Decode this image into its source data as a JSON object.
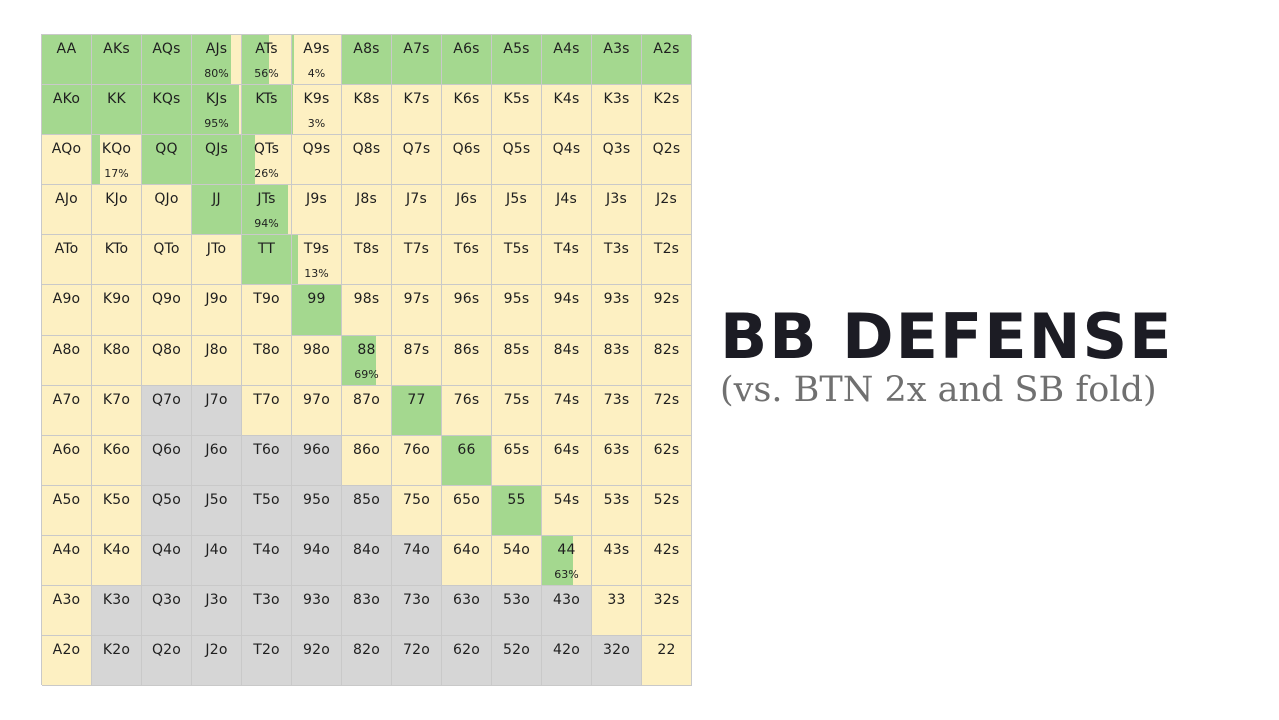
{
  "title": "BB DEFENSE",
  "subtitle": "(vs. BTN 2x and SB fold)",
  "colors": {
    "call": "#a4d88f",
    "raise": "#fdf0c2",
    "fold": "#d6d6d6"
  },
  "grid": {
    "rows": [
      [
        {
          "hand": "AA",
          "fill": "call",
          "freq": 1
        },
        {
          "hand": "AKs",
          "fill": "call",
          "freq": 1
        },
        {
          "hand": "AQs",
          "fill": "call",
          "freq": 1
        },
        {
          "hand": "AJs",
          "fill": "call",
          "freq": 0.8,
          "pct": "80%"
        },
        {
          "hand": "ATs",
          "fill": "call",
          "freq": 0.56,
          "pct": "56%"
        },
        {
          "hand": "A9s",
          "fill": "call",
          "freq": 0.04,
          "pct": "4%"
        },
        {
          "hand": "A8s",
          "fill": "call",
          "freq": 1
        },
        {
          "hand": "A7s",
          "fill": "call",
          "freq": 1
        },
        {
          "hand": "A6s",
          "fill": "call",
          "freq": 1
        },
        {
          "hand": "A5s",
          "fill": "call",
          "freq": 1
        },
        {
          "hand": "A4s",
          "fill": "call",
          "freq": 1
        },
        {
          "hand": "A3s",
          "fill": "call",
          "freq": 1
        },
        {
          "hand": "A2s",
          "fill": "call",
          "freq": 1
        }
      ],
      [
        {
          "hand": "AKo",
          "fill": "call",
          "freq": 1
        },
        {
          "hand": "KK",
          "fill": "call",
          "freq": 1
        },
        {
          "hand": "KQs",
          "fill": "call",
          "freq": 1
        },
        {
          "hand": "KJs",
          "fill": "call",
          "freq": 0.95,
          "pct": "95%"
        },
        {
          "hand": "KTs",
          "fill": "call",
          "freq": 1
        },
        {
          "hand": "K9s",
          "fill": "call",
          "freq": 0.03,
          "pct": "3%"
        },
        {
          "hand": "K8s",
          "fill": "raise",
          "freq": 0
        },
        {
          "hand": "K7s",
          "fill": "raise",
          "freq": 0
        },
        {
          "hand": "K6s",
          "fill": "raise",
          "freq": 0
        },
        {
          "hand": "K5s",
          "fill": "raise",
          "freq": 0
        },
        {
          "hand": "K4s",
          "fill": "raise",
          "freq": 0
        },
        {
          "hand": "K3s",
          "fill": "raise",
          "freq": 0
        },
        {
          "hand": "K2s",
          "fill": "raise",
          "freq": 0
        }
      ],
      [
        {
          "hand": "AQo",
          "fill": "raise",
          "freq": 0
        },
        {
          "hand": "KQo",
          "fill": "call",
          "freq": 0.17,
          "pct": "17%"
        },
        {
          "hand": "QQ",
          "fill": "call",
          "freq": 1
        },
        {
          "hand": "QJs",
          "fill": "call",
          "freq": 1
        },
        {
          "hand": "QTs",
          "fill": "call",
          "freq": 0.26,
          "pct": "26%"
        },
        {
          "hand": "Q9s",
          "fill": "raise",
          "freq": 0
        },
        {
          "hand": "Q8s",
          "fill": "raise",
          "freq": 0
        },
        {
          "hand": "Q7s",
          "fill": "raise",
          "freq": 0
        },
        {
          "hand": "Q6s",
          "fill": "raise",
          "freq": 0
        },
        {
          "hand": "Q5s",
          "fill": "raise",
          "freq": 0
        },
        {
          "hand": "Q4s",
          "fill": "raise",
          "freq": 0
        },
        {
          "hand": "Q3s",
          "fill": "raise",
          "freq": 0
        },
        {
          "hand": "Q2s",
          "fill": "raise",
          "freq": 0
        }
      ],
      [
        {
          "hand": "AJo",
          "fill": "raise",
          "freq": 0
        },
        {
          "hand": "KJo",
          "fill": "raise",
          "freq": 0
        },
        {
          "hand": "QJo",
          "fill": "raise",
          "freq": 0
        },
        {
          "hand": "JJ",
          "fill": "call",
          "freq": 1
        },
        {
          "hand": "JTs",
          "fill": "call",
          "freq": 0.94,
          "pct": "94%"
        },
        {
          "hand": "J9s",
          "fill": "raise",
          "freq": 0
        },
        {
          "hand": "J8s",
          "fill": "raise",
          "freq": 0
        },
        {
          "hand": "J7s",
          "fill": "raise",
          "freq": 0
        },
        {
          "hand": "J6s",
          "fill": "raise",
          "freq": 0
        },
        {
          "hand": "J5s",
          "fill": "raise",
          "freq": 0
        },
        {
          "hand": "J4s",
          "fill": "raise",
          "freq": 0
        },
        {
          "hand": "J3s",
          "fill": "raise",
          "freq": 0
        },
        {
          "hand": "J2s",
          "fill": "raise",
          "freq": 0
        }
      ],
      [
        {
          "hand": "ATo",
          "fill": "raise",
          "freq": 0
        },
        {
          "hand": "KTo",
          "fill": "raise",
          "freq": 0
        },
        {
          "hand": "QTo",
          "fill": "raise",
          "freq": 0
        },
        {
          "hand": "JTo",
          "fill": "raise",
          "freq": 0
        },
        {
          "hand": "TT",
          "fill": "call",
          "freq": 1
        },
        {
          "hand": "T9s",
          "fill": "call",
          "freq": 0.13,
          "pct": "13%"
        },
        {
          "hand": "T8s",
          "fill": "raise",
          "freq": 0
        },
        {
          "hand": "T7s",
          "fill": "raise",
          "freq": 0
        },
        {
          "hand": "T6s",
          "fill": "raise",
          "freq": 0
        },
        {
          "hand": "T5s",
          "fill": "raise",
          "freq": 0
        },
        {
          "hand": "T4s",
          "fill": "raise",
          "freq": 0
        },
        {
          "hand": "T3s",
          "fill": "raise",
          "freq": 0
        },
        {
          "hand": "T2s",
          "fill": "raise",
          "freq": 0
        }
      ],
      [
        {
          "hand": "A9o",
          "fill": "raise",
          "freq": 0
        },
        {
          "hand": "K9o",
          "fill": "raise",
          "freq": 0
        },
        {
          "hand": "Q9o",
          "fill": "raise",
          "freq": 0
        },
        {
          "hand": "J9o",
          "fill": "raise",
          "freq": 0
        },
        {
          "hand": "T9o",
          "fill": "raise",
          "freq": 0
        },
        {
          "hand": "99",
          "fill": "call",
          "freq": 1
        },
        {
          "hand": "98s",
          "fill": "raise",
          "freq": 0
        },
        {
          "hand": "97s",
          "fill": "raise",
          "freq": 0
        },
        {
          "hand": "96s",
          "fill": "raise",
          "freq": 0
        },
        {
          "hand": "95s",
          "fill": "raise",
          "freq": 0
        },
        {
          "hand": "94s",
          "fill": "raise",
          "freq": 0
        },
        {
          "hand": "93s",
          "fill": "raise",
          "freq": 0
        },
        {
          "hand": "92s",
          "fill": "raise",
          "freq": 0
        }
      ],
      [
        {
          "hand": "A8o",
          "fill": "raise",
          "freq": 0
        },
        {
          "hand": "K8o",
          "fill": "raise",
          "freq": 0
        },
        {
          "hand": "Q8o",
          "fill": "raise",
          "freq": 0
        },
        {
          "hand": "J8o",
          "fill": "raise",
          "freq": 0
        },
        {
          "hand": "T8o",
          "fill": "raise",
          "freq": 0
        },
        {
          "hand": "98o",
          "fill": "raise",
          "freq": 0
        },
        {
          "hand": "88",
          "fill": "call",
          "freq": 0.69,
          "pct": "69%"
        },
        {
          "hand": "87s",
          "fill": "raise",
          "freq": 0
        },
        {
          "hand": "86s",
          "fill": "raise",
          "freq": 0
        },
        {
          "hand": "85s",
          "fill": "raise",
          "freq": 0
        },
        {
          "hand": "84s",
          "fill": "raise",
          "freq": 0
        },
        {
          "hand": "83s",
          "fill": "raise",
          "freq": 0
        },
        {
          "hand": "82s",
          "fill": "raise",
          "freq": 0
        }
      ],
      [
        {
          "hand": "A7o",
          "fill": "raise",
          "freq": 0
        },
        {
          "hand": "K7o",
          "fill": "raise",
          "freq": 0
        },
        {
          "hand": "Q7o",
          "fill": "fold",
          "freq": 0
        },
        {
          "hand": "J7o",
          "fill": "fold",
          "freq": 0
        },
        {
          "hand": "T7o",
          "fill": "raise",
          "freq": 0
        },
        {
          "hand": "97o",
          "fill": "raise",
          "freq": 0
        },
        {
          "hand": "87o",
          "fill": "raise",
          "freq": 0
        },
        {
          "hand": "77",
          "fill": "call",
          "freq": 1
        },
        {
          "hand": "76s",
          "fill": "raise",
          "freq": 0
        },
        {
          "hand": "75s",
          "fill": "raise",
          "freq": 0
        },
        {
          "hand": "74s",
          "fill": "raise",
          "freq": 0
        },
        {
          "hand": "73s",
          "fill": "raise",
          "freq": 0
        },
        {
          "hand": "72s",
          "fill": "raise",
          "freq": 0
        }
      ],
      [
        {
          "hand": "A6o",
          "fill": "raise",
          "freq": 0
        },
        {
          "hand": "K6o",
          "fill": "raise",
          "freq": 0
        },
        {
          "hand": "Q6o",
          "fill": "fold",
          "freq": 0
        },
        {
          "hand": "J6o",
          "fill": "fold",
          "freq": 0
        },
        {
          "hand": "T6o",
          "fill": "fold",
          "freq": 0
        },
        {
          "hand": "96o",
          "fill": "fold",
          "freq": 0
        },
        {
          "hand": "86o",
          "fill": "raise",
          "freq": 0
        },
        {
          "hand": "76o",
          "fill": "raise",
          "freq": 0
        },
        {
          "hand": "66",
          "fill": "call",
          "freq": 1
        },
        {
          "hand": "65s",
          "fill": "raise",
          "freq": 0
        },
        {
          "hand": "64s",
          "fill": "raise",
          "freq": 0
        },
        {
          "hand": "63s",
          "fill": "raise",
          "freq": 0
        },
        {
          "hand": "62s",
          "fill": "raise",
          "freq": 0
        }
      ],
      [
        {
          "hand": "A5o",
          "fill": "raise",
          "freq": 0
        },
        {
          "hand": "K5o",
          "fill": "raise",
          "freq": 0
        },
        {
          "hand": "Q5o",
          "fill": "fold",
          "freq": 0
        },
        {
          "hand": "J5o",
          "fill": "fold",
          "freq": 0
        },
        {
          "hand": "T5o",
          "fill": "fold",
          "freq": 0
        },
        {
          "hand": "95o",
          "fill": "fold",
          "freq": 0
        },
        {
          "hand": "85o",
          "fill": "fold",
          "freq": 0
        },
        {
          "hand": "75o",
          "fill": "raise",
          "freq": 0
        },
        {
          "hand": "65o",
          "fill": "raise",
          "freq": 0
        },
        {
          "hand": "55",
          "fill": "call",
          "freq": 1
        },
        {
          "hand": "54s",
          "fill": "raise",
          "freq": 0
        },
        {
          "hand": "53s",
          "fill": "raise",
          "freq": 0
        },
        {
          "hand": "52s",
          "fill": "raise",
          "freq": 0
        }
      ],
      [
        {
          "hand": "A4o",
          "fill": "raise",
          "freq": 0
        },
        {
          "hand": "K4o",
          "fill": "raise",
          "freq": 0
        },
        {
          "hand": "Q4o",
          "fill": "fold",
          "freq": 0
        },
        {
          "hand": "J4o",
          "fill": "fold",
          "freq": 0
        },
        {
          "hand": "T4o",
          "fill": "fold",
          "freq": 0
        },
        {
          "hand": "94o",
          "fill": "fold",
          "freq": 0
        },
        {
          "hand": "84o",
          "fill": "fold",
          "freq": 0
        },
        {
          "hand": "74o",
          "fill": "fold",
          "freq": 0
        },
        {
          "hand": "64o",
          "fill": "raise",
          "freq": 0
        },
        {
          "hand": "54o",
          "fill": "raise",
          "freq": 0
        },
        {
          "hand": "44",
          "fill": "call",
          "freq": 0.63,
          "pct": "63%"
        },
        {
          "hand": "43s",
          "fill": "raise",
          "freq": 0
        },
        {
          "hand": "42s",
          "fill": "raise",
          "freq": 0
        }
      ],
      [
        {
          "hand": "A3o",
          "fill": "raise",
          "freq": 0
        },
        {
          "hand": "K3o",
          "fill": "fold",
          "freq": 0
        },
        {
          "hand": "Q3o",
          "fill": "fold",
          "freq": 0
        },
        {
          "hand": "J3o",
          "fill": "fold",
          "freq": 0
        },
        {
          "hand": "T3o",
          "fill": "fold",
          "freq": 0
        },
        {
          "hand": "93o",
          "fill": "fold",
          "freq": 0
        },
        {
          "hand": "83o",
          "fill": "fold",
          "freq": 0
        },
        {
          "hand": "73o",
          "fill": "fold",
          "freq": 0
        },
        {
          "hand": "63o",
          "fill": "fold",
          "freq": 0
        },
        {
          "hand": "53o",
          "fill": "fold",
          "freq": 0
        },
        {
          "hand": "43o",
          "fill": "fold",
          "freq": 0
        },
        {
          "hand": "33",
          "fill": "raise",
          "freq": 0
        },
        {
          "hand": "32s",
          "fill": "raise",
          "freq": 0
        }
      ],
      [
        {
          "hand": "A2o",
          "fill": "raise",
          "freq": 0
        },
        {
          "hand": "K2o",
          "fill": "fold",
          "freq": 0
        },
        {
          "hand": "Q2o",
          "fill": "fold",
          "freq": 0
        },
        {
          "hand": "J2o",
          "fill": "fold",
          "freq": 0
        },
        {
          "hand": "T2o",
          "fill": "fold",
          "freq": 0
        },
        {
          "hand": "92o",
          "fill": "fold",
          "freq": 0
        },
        {
          "hand": "82o",
          "fill": "fold",
          "freq": 0
        },
        {
          "hand": "72o",
          "fill": "fold",
          "freq": 0
        },
        {
          "hand": "62o",
          "fill": "fold",
          "freq": 0
        },
        {
          "hand": "52o",
          "fill": "fold",
          "freq": 0
        },
        {
          "hand": "42o",
          "fill": "fold",
          "freq": 0
        },
        {
          "hand": "32o",
          "fill": "fold",
          "freq": 0
        },
        {
          "hand": "22",
          "fill": "raise",
          "freq": 0
        }
      ]
    ]
  }
}
